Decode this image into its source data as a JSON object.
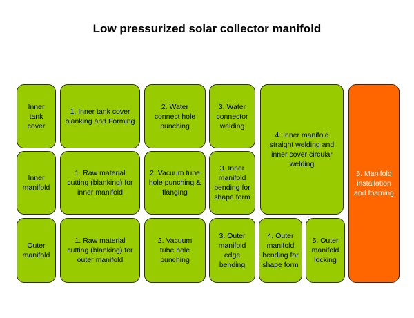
{
  "title": "Low pressurized solar collector manifold",
  "colors": {
    "process_box": "#99cc00",
    "final_box": "#ff6600",
    "border": "#2b2b2b"
  },
  "rows": {
    "inner_tank_cover": {
      "label": "Inner tank cover",
      "steps": [
        "1. Inner tank cover blanking and Forming",
        "2. Water connect hole punching",
        "3. Water connector welding"
      ]
    },
    "inner_manifold": {
      "label": "Inner manifold",
      "steps": [
        "1. Raw material cutting (blanking) for inner manifold",
        "2. Vacuum tube hole punching & flanging",
        "3. Inner manifold bending for shape form"
      ]
    },
    "outer_manifold": {
      "label": "Outer manifold",
      "steps": [
        "1. Raw material cutting (blanking) for outer manifold",
        "2. Vacuum tube hole punching",
        "3. Outer manifold edge bending",
        "4. Outer manifold bending for shape form",
        "5. Outer manifold locking"
      ]
    }
  },
  "merged_step": "4. Inner manifold straight welding and inner cover circular welding",
  "final_step": "6. Manifold installation and foaming"
}
